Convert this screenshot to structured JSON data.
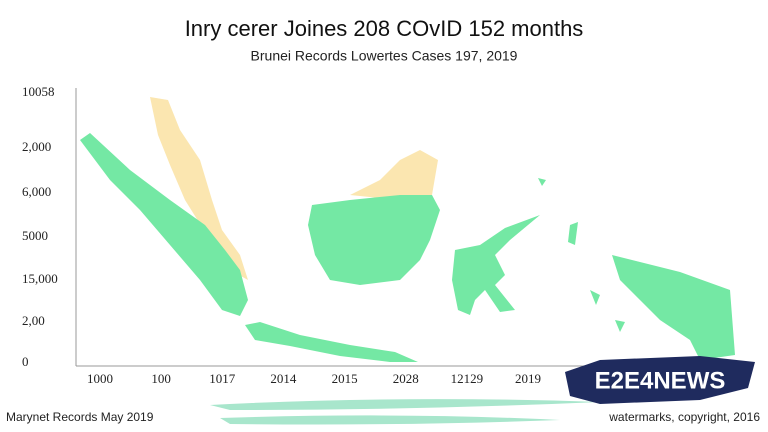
{
  "header": {
    "title": "Inry cerer Joines 208 COvID 152 months",
    "subtitle": "Brunei Records Lowertes Cases 197, 2019"
  },
  "y_labels": [
    "10058",
    "2,000",
    "6,000",
    "5000",
    "15,000",
    "2,00",
    "0"
  ],
  "x_labels": [
    "1000",
    "100",
    "1017",
    "2014",
    "2015",
    "2028",
    "12129",
    "2019"
  ],
  "footer": {
    "source": "Marynet Records May 2019",
    "copyright": "watermarks, copyright, 2016"
  },
  "logo": {
    "text": "E2E4NEWS"
  }
}
